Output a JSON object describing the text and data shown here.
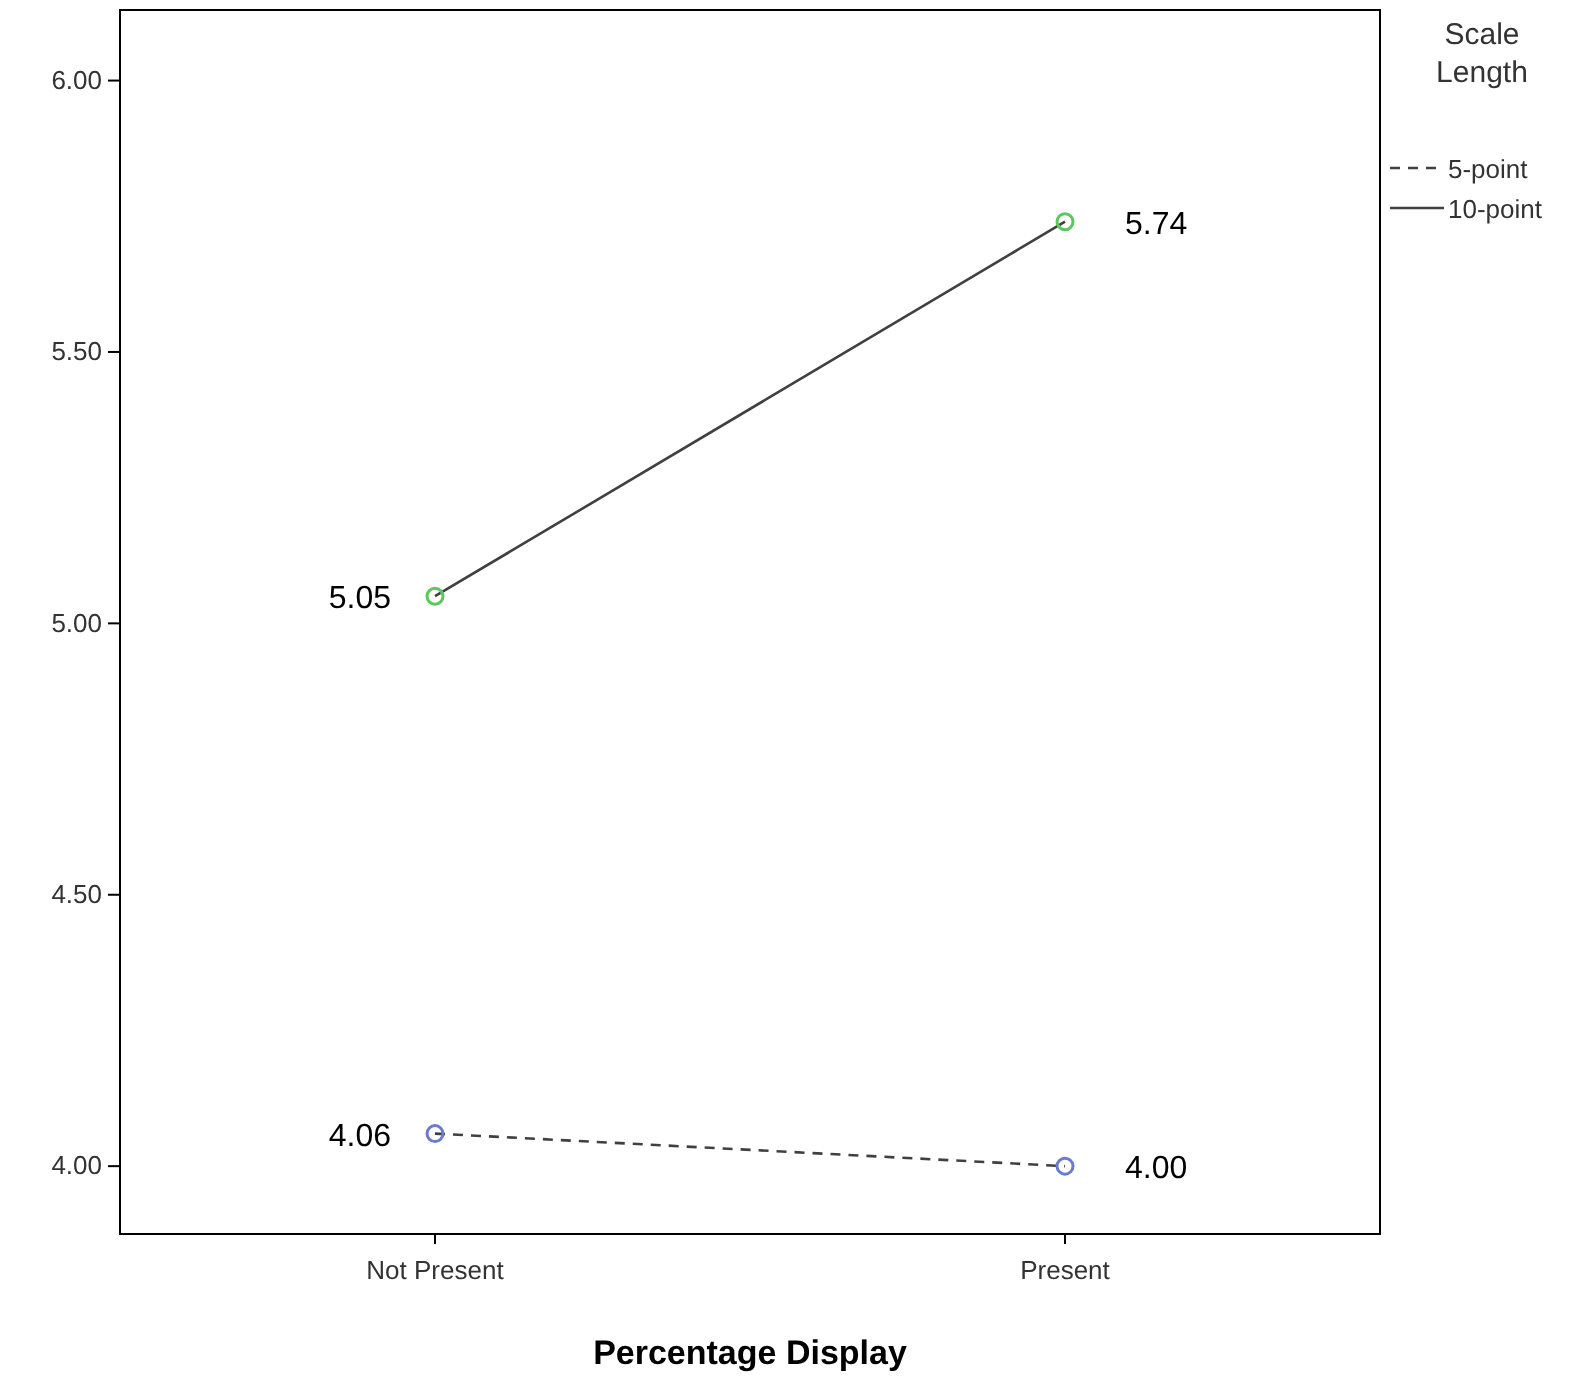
{
  "chart_data": {
    "type": "line",
    "xlabel": "Percentage Display",
    "legend_title": "Scale Length",
    "legend": "top right",
    "marker": "circle",
    "grid": false,
    "categories": [
      "Not Present",
      "Present"
    ],
    "ylim": [
      3.875,
      6.13
    ],
    "yticks": [
      {
        "value": 4,
        "label": "4.00"
      },
      {
        "value": 4.5,
        "label": "4.50"
      },
      {
        "value": 5,
        "label": "5.00"
      },
      {
        "value": 5.5,
        "label": "5.50"
      },
      {
        "value": 6,
        "label": "6.00"
      }
    ],
    "series": [
      {
        "name": "5-point",
        "color": "#404040",
        "line_style": "dashed",
        "colors": [
          "#6a7bd0",
          "#6a7bd0"
        ],
        "values": [
          4.06,
          4.0
        ],
        "value_labels": [
          "4.06",
          "4.00"
        ]
      },
      {
        "name": "10-point",
        "color": "#404040",
        "line_style": "solid",
        "colors": [
          "#5cc85c",
          "#5cc85c"
        ],
        "values": [
          5.05,
          5.74
        ],
        "value_labels": [
          "5.05",
          "5.74"
        ]
      }
    ]
  }
}
